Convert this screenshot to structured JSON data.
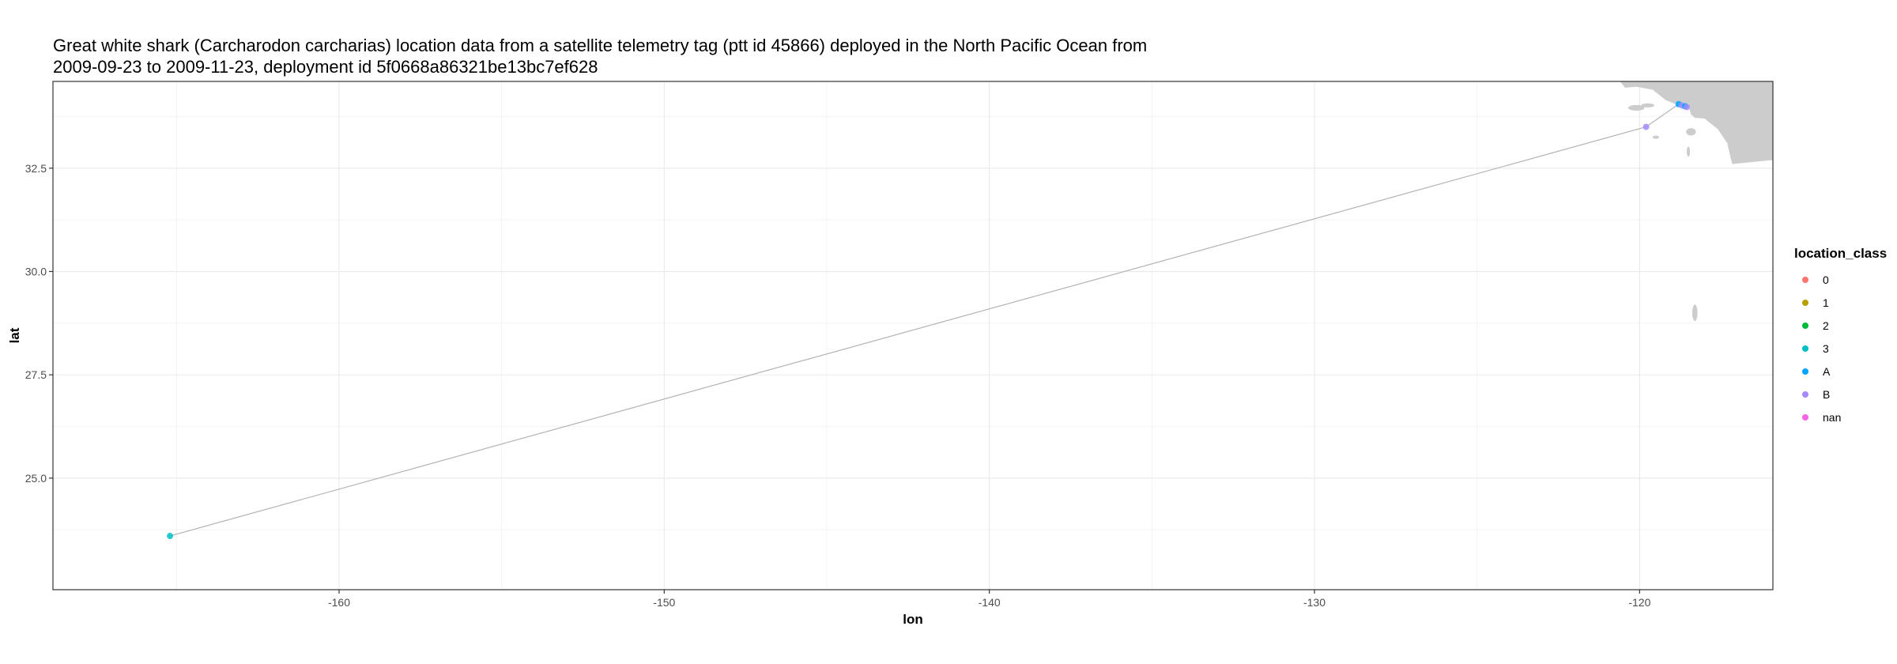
{
  "chart_data": {
    "type": "scatter",
    "title_lines": [
      "Great white shark (Carcharodon carcharias) location data from a satellite telemetry tag (ptt id 45866) deployed in the North Pacific Ocean from",
      "2009-09-23 to 2009-11-23, deployment id 5f0668a86321be13bc7ef628"
    ],
    "xlabel": "lon",
    "ylabel": "lat",
    "xlim": [
      -168.8,
      -115.9
    ],
    "ylim": [
      22.3,
      34.6
    ],
    "x_ticks": [
      -160,
      -150,
      -140,
      -130,
      -120
    ],
    "x_tick_labels": [
      "-160",
      "-150",
      "-140",
      "-130",
      "-120"
    ],
    "y_ticks": [
      25.0,
      27.5,
      30.0,
      32.5
    ],
    "y_tick_labels": [
      "25.0",
      "27.5",
      "30.0",
      "32.5"
    ],
    "grid": true,
    "track_color": "#b3b3b3",
    "land_color": "#cccccc",
    "legend": {
      "title": "location_class",
      "position": "right",
      "entries": [
        {
          "label": "0",
          "color": "#F8766D"
        },
        {
          "label": "1",
          "color": "#B79F00"
        },
        {
          "label": "2",
          "color": "#00BA38"
        },
        {
          "label": "3",
          "color": "#00BFC4"
        },
        {
          "label": "A",
          "color": "#00A5FF"
        },
        {
          "label": "B",
          "color": "#A58AFF"
        },
        {
          "label": "nan",
          "color": "#F564E3"
        }
      ]
    },
    "points": [
      {
        "lon": -165.2,
        "lat": 23.6,
        "location_class": "3"
      },
      {
        "lon": -119.8,
        "lat": 33.5,
        "location_class": "B"
      },
      {
        "lon": -118.8,
        "lat": 34.05,
        "location_class": "A"
      },
      {
        "lon": -118.7,
        "lat": 34.02,
        "location_class": "B"
      },
      {
        "lon": -118.6,
        "lat": 34.0,
        "location_class": "A"
      },
      {
        "lon": -118.55,
        "lat": 33.98,
        "location_class": "B"
      }
    ]
  }
}
